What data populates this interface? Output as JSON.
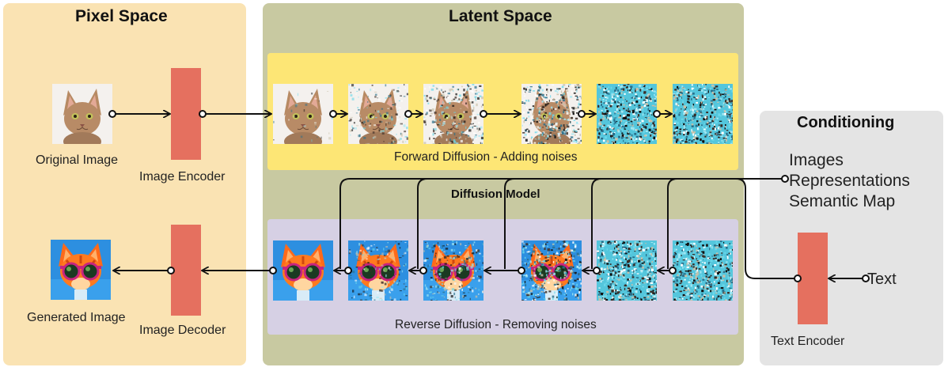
{
  "pixel_space": {
    "title": "Pixel Space",
    "original_image_label": "Original Image",
    "image_encoder_label": "Image Encoder",
    "generated_image_label": "Generated Image",
    "image_decoder_label": "Image Decoder"
  },
  "latent_space": {
    "title": "Latent Space",
    "forward_label": "Forward Diffusion - Adding noises",
    "diffusion_model_label": "Diffusion Model",
    "reverse_label": "Reverse Diffusion - Removing noises"
  },
  "conditioning": {
    "title": "Conditioning",
    "items": [
      "Images",
      "Representations",
      "Semantic Map"
    ],
    "text_label": "Text",
    "text_encoder_label": "Text Encoder"
  },
  "colors": {
    "pixel_space_bg": "#fae3b3",
    "latent_space_bg": "#c8c9a1",
    "conditioning_bg": "#e4e4e4",
    "forward_band": "#fde675",
    "reverse_band": "#d6d0e4",
    "encoder_block": "#e5705f",
    "noise": "#6ad8ea"
  },
  "images": {
    "forward_steps": [
      {
        "icon": "cat-photo-icon",
        "noise": 0.05
      },
      {
        "icon": "cat-photo-icon",
        "noise": 0.3
      },
      {
        "icon": "cat-photo-icon",
        "noise": 0.45
      },
      {
        "icon": "noisy-cat-icon",
        "noise": 0.7
      },
      {
        "icon": "noise-icon",
        "noise": 1.0
      },
      {
        "icon": "noise-icon",
        "noise": 1.0
      }
    ],
    "reverse_steps": [
      {
        "icon": "cat-sunglasses-icon",
        "noise": 0.0
      },
      {
        "icon": "cat-sunglasses-icon",
        "noise": 0.3
      },
      {
        "icon": "cat-sunglasses-icon",
        "noise": 0.45
      },
      {
        "icon": "noisy-cat-icon",
        "noise": 0.7
      },
      {
        "icon": "noise-icon",
        "noise": 1.0
      },
      {
        "icon": "noise-icon",
        "noise": 1.0
      }
    ]
  }
}
